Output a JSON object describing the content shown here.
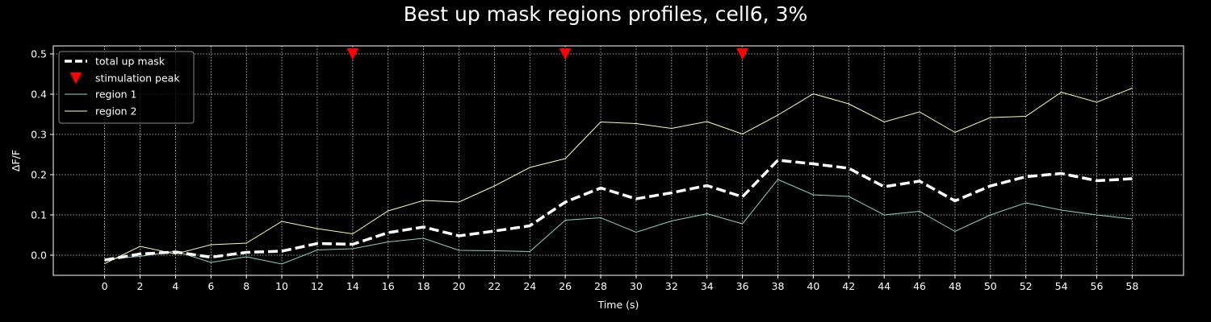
{
  "chart_data": {
    "type": "line",
    "title": "Best up mask regions profiles, cell6, 3%",
    "xlabel": "Time (s)",
    "ylabel": "ΔF/F",
    "xlim": [
      -2.9,
      60.9
    ],
    "ylim": [
      -0.05,
      0.52
    ],
    "xticks": [
      0,
      2,
      4,
      6,
      8,
      10,
      12,
      14,
      16,
      18,
      20,
      22,
      24,
      26,
      28,
      30,
      32,
      34,
      36,
      38,
      40,
      42,
      44,
      46,
      48,
      50,
      52,
      54,
      56,
      58
    ],
    "yticks": [
      0.0,
      0.1,
      0.2,
      0.3,
      0.4,
      0.5
    ],
    "ytick_labels": [
      "0.0",
      "0.1",
      "0.2",
      "0.3",
      "0.4",
      "0.5"
    ],
    "grid": true,
    "legend_position": "top-left",
    "background": "#000000",
    "x": [
      0,
      2,
      4,
      6,
      8,
      10,
      12,
      14,
      16,
      18,
      20,
      22,
      24,
      26,
      28,
      30,
      32,
      34,
      36,
      38,
      40,
      42,
      44,
      46,
      48,
      50,
      52,
      54,
      56,
      58
    ],
    "series": [
      {
        "name": "total up mask",
        "style": "dashed-thick",
        "color": "#ffffff",
        "values": [
          -0.012,
          0.003,
          0.008,
          -0.005,
          0.007,
          0.01,
          0.029,
          0.027,
          0.056,
          0.07,
          0.048,
          0.06,
          0.073,
          0.132,
          0.167,
          0.14,
          0.155,
          0.173,
          0.145,
          0.236,
          0.227,
          0.216,
          0.17,
          0.184,
          0.135,
          0.172,
          0.195,
          0.203,
          0.185,
          0.19
        ]
      },
      {
        "name": "region 1",
        "style": "thin",
        "color": "#8dd3c7",
        "values": [
          -0.01,
          -0.003,
          0.01,
          -0.018,
          -0.004,
          -0.022,
          0.013,
          0.016,
          0.033,
          0.042,
          0.012,
          0.011,
          0.009,
          0.087,
          0.093,
          0.057,
          0.085,
          0.103,
          0.078,
          0.188,
          0.15,
          0.146,
          0.1,
          0.109,
          0.059,
          0.1,
          0.13,
          0.112,
          0.1,
          0.09
        ]
      },
      {
        "name": "region 2",
        "style": "thin",
        "color": "#ffffb3",
        "values": [
          -0.021,
          0.022,
          0.003,
          0.026,
          0.03,
          0.084,
          0.066,
          0.053,
          0.11,
          0.136,
          0.132,
          0.172,
          0.218,
          0.24,
          0.331,
          0.327,
          0.315,
          0.332,
          0.301,
          0.348,
          0.401,
          0.376,
          0.331,
          0.356,
          0.305,
          0.342,
          0.345,
          0.405,
          0.38,
          0.415
        ]
      }
    ],
    "markers": {
      "name": "stimulation peak",
      "marker": "triangle-down",
      "color": "#ff0000",
      "x": [
        14,
        26,
        36
      ],
      "y": [
        0.5,
        0.5,
        0.5
      ]
    },
    "legend": [
      "total up mask",
      "stimulation peak",
      "region 1",
      "region 2"
    ]
  }
}
